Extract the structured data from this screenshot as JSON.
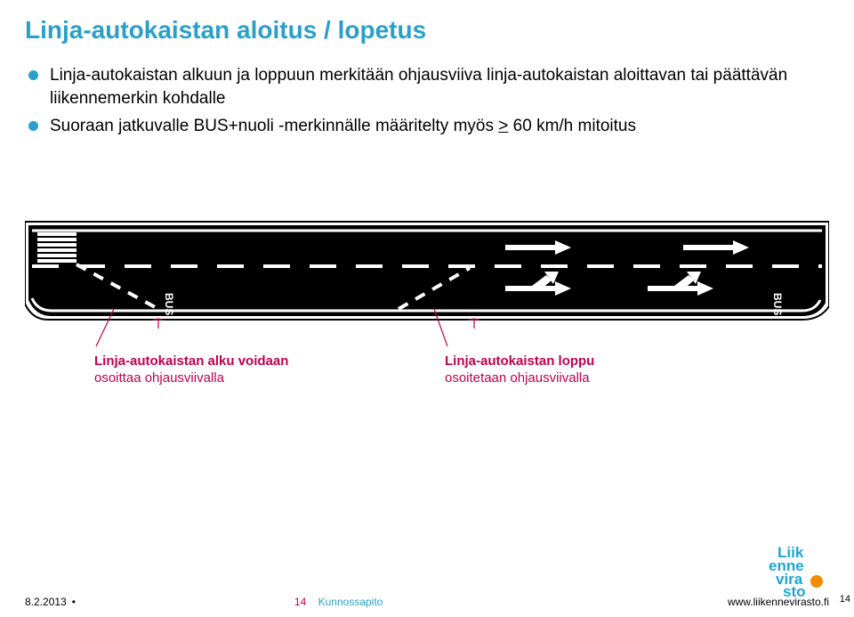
{
  "colors": {
    "title": "#2aa0c8",
    "bullet": "#2aa0c8",
    "annot": "#c0004e",
    "footerSlide": "#c0004e",
    "footerSection": "#2aa0c8",
    "logoBlue": "#1da6d4",
    "logoOrange": "#f28c00"
  },
  "title": "Linja-autokaistan aloitus / lopetus",
  "bullets": [
    {
      "pre": "Linja-autokaistan alkuun ja loppuun merkitään ohjausviiva linja-autokaistan aloittavan tai päättävän liikennemerkin kohdalle",
      "u": "",
      "post": ""
    },
    {
      "pre": "Suoraan jatkuvalle BUS+nuoli -merkinnälle määritelty myös ",
      "u": ">",
      "post": " 60 km/h mitoitus"
    }
  ],
  "annotations": {
    "left": {
      "l1": "Linja-autokaistan alku voidaan",
      "l2": "osoittaa ohjausviivalla"
    },
    "right": {
      "l1": "Linja-autokaistan loppu",
      "l2": "osoitetaan ohjausviivalla"
    }
  },
  "diagram": {
    "bus_label": "BUS"
  },
  "footer": {
    "date": "8.2.2013",
    "slide_no": "14",
    "section": "Kunnossapito",
    "url": "www.liikennevirasto.fi",
    "page_marker": "14"
  },
  "logo": {
    "l1": "Liik",
    "l2": "enne",
    "l3": "vira",
    "l4": "sto"
  }
}
